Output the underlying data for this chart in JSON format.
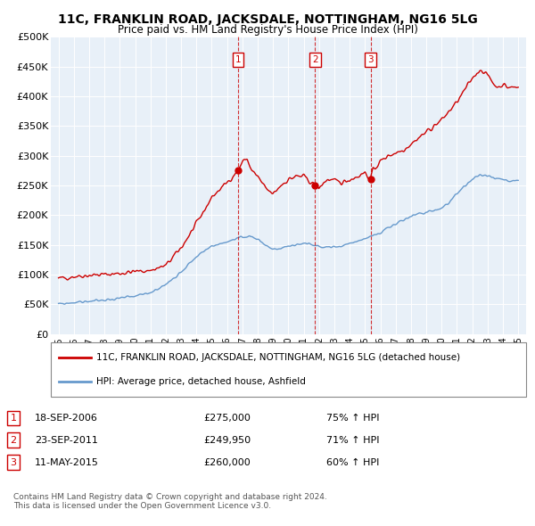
{
  "title": "11C, FRANKLIN ROAD, JACKSDALE, NOTTINGHAM, NG16 5LG",
  "subtitle": "Price paid vs. HM Land Registry's House Price Index (HPI)",
  "legend_label_red": "11C, FRANKLIN ROAD, JACKSDALE, NOTTINGHAM, NG16 5LG (detached house)",
  "legend_label_blue": "HPI: Average price, detached house, Ashfield",
  "footer1": "Contains HM Land Registry data © Crown copyright and database right 2024.",
  "footer2": "This data is licensed under the Open Government Licence v3.0.",
  "sales": [
    {
      "num": 1,
      "date": "18-SEP-2006",
      "date_x": 2006.72,
      "price": 275000,
      "price_str": "£275,000",
      "pct": "75%",
      "dir": "↑"
    },
    {
      "num": 2,
      "date": "23-SEP-2011",
      "date_x": 2011.73,
      "price": 249950,
      "price_str": "£249,950",
      "pct": "71%",
      "dir": "↑"
    },
    {
      "num": 3,
      "date": "11-MAY-2015",
      "date_x": 2015.36,
      "price": 260000,
      "price_str": "£260,000",
      "pct": "60%",
      "dir": "↑"
    }
  ],
  "ylim": [
    0,
    500000
  ],
  "xlim": [
    1994.5,
    2025.5
  ],
  "yticks": [
    0,
    50000,
    100000,
    150000,
    200000,
    250000,
    300000,
    350000,
    400000,
    450000,
    500000
  ],
  "ytick_labels": [
    "£0",
    "£50K",
    "£100K",
    "£150K",
    "£200K",
    "£250K",
    "£300K",
    "£350K",
    "£400K",
    "£450K",
    "£500K"
  ],
  "xticks": [
    1995,
    1996,
    1997,
    1998,
    1999,
    2000,
    2001,
    2002,
    2003,
    2004,
    2005,
    2006,
    2007,
    2008,
    2009,
    2010,
    2011,
    2012,
    2013,
    2014,
    2015,
    2016,
    2017,
    2018,
    2019,
    2020,
    2021,
    2022,
    2023,
    2024,
    2025
  ],
  "red_color": "#cc0000",
  "blue_color": "#6699cc",
  "background_color": "#ffffff",
  "grid_color": "#cccccc",
  "box_color": "#cc0000",
  "red_pts": {
    "1995.0": 93000,
    "1996.0": 97000,
    "1997.0": 99000,
    "1998.0": 100000,
    "1999.0": 102000,
    "2000.0": 105000,
    "2001.0": 107000,
    "2002.0": 115000,
    "2003.0": 145000,
    "2004.0": 185000,
    "2005.0": 230000,
    "2006.0": 255000,
    "2006.72": 275000,
    "2007.0": 290000,
    "2007.3": 295000,
    "2007.6": 275000,
    "2008.0": 265000,
    "2008.5": 245000,
    "2009.0": 235000,
    "2009.5": 250000,
    "2010.0": 260000,
    "2010.5": 265000,
    "2011.0": 265000,
    "2011.73": 249950,
    "2012.0": 245000,
    "2012.3": 255000,
    "2012.6": 260000,
    "2013.0": 257000,
    "2013.5": 255000,
    "2014.0": 260000,
    "2014.5": 265000,
    "2015.0": 272000,
    "2015.36": 260000,
    "2015.5": 275000,
    "2016.0": 290000,
    "2016.5": 300000,
    "2017.0": 305000,
    "2017.5": 310000,
    "2018.0": 320000,
    "2018.5": 330000,
    "2019.0": 340000,
    "2019.5": 350000,
    "2020.0": 360000,
    "2020.5": 375000,
    "2021.0": 390000,
    "2021.5": 410000,
    "2022.0": 430000,
    "2022.3": 440000,
    "2022.6": 445000,
    "2023.0": 435000,
    "2023.3": 425000,
    "2023.6": 415000,
    "2024.0": 420000,
    "2024.3": 415000,
    "2024.6": 415000,
    "2025.0": 415000
  },
  "blue_pts": {
    "1995.0": 50000,
    "1996.0": 53000,
    "1997.0": 55000,
    "1998.0": 57000,
    "1999.0": 60000,
    "2000.0": 63000,
    "2001.0": 70000,
    "2002.0": 83000,
    "2003.0": 105000,
    "2004.0": 130000,
    "2005.0": 148000,
    "2006.0": 155000,
    "2007.0": 162000,
    "2007.5": 165000,
    "2008.0": 160000,
    "2008.5": 150000,
    "2009.0": 142000,
    "2009.5": 143000,
    "2010.0": 148000,
    "2010.5": 150000,
    "2011.0": 153000,
    "2011.5": 150000,
    "2012.0": 147000,
    "2012.5": 146000,
    "2013.0": 147000,
    "2013.5": 148000,
    "2014.0": 152000,
    "2014.5": 157000,
    "2015.0": 160000,
    "2015.5": 165000,
    "2016.0": 170000,
    "2016.5": 178000,
    "2017.0": 185000,
    "2017.5": 192000,
    "2018.0": 198000,
    "2018.5": 202000,
    "2019.0": 205000,
    "2019.5": 208000,
    "2020.0": 212000,
    "2020.5": 222000,
    "2021.0": 235000,
    "2021.5": 248000,
    "2022.0": 260000,
    "2022.5": 268000,
    "2023.0": 265000,
    "2023.5": 262000,
    "2024.0": 260000,
    "2024.5": 258000,
    "2025.0": 258000
  }
}
